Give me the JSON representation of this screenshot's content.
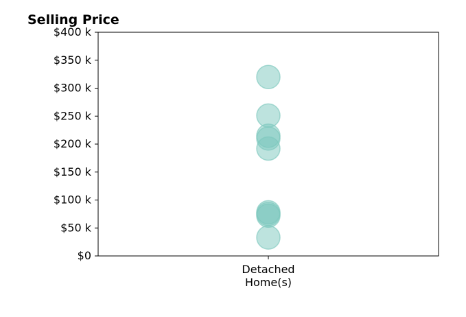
{
  "chart_data": {
    "type": "scatter",
    "title": "Selling Price",
    "xlabel": "",
    "ylabel": "",
    "categories": [
      "Detached\nHome(s)"
    ],
    "points": [
      {
        "category": "Detached\nHome(s)",
        "y": 320000
      },
      {
        "category": "Detached\nHome(s)",
        "y": 251000
      },
      {
        "category": "Detached\nHome(s)",
        "y": 215000
      },
      {
        "category": "Detached\nHome(s)",
        "y": 210000
      },
      {
        "category": "Detached\nHome(s)",
        "y": 192000
      },
      {
        "category": "Detached\nHome(s)",
        "y": 78000
      },
      {
        "category": "Detached\nHome(s)",
        "y": 75000
      },
      {
        "category": "Detached\nHome(s)",
        "y": 72000
      },
      {
        "category": "Detached\nHome(s)",
        "y": 33000
      }
    ],
    "ylim": [
      0,
      400000
    ],
    "ytick_values": [
      0,
      50000,
      100000,
      150000,
      200000,
      250000,
      300000,
      350000,
      400000
    ],
    "ytick_labels": [
      "$0",
      "$50 k",
      "$100 k",
      "$150 k",
      "$200 k",
      "$250 k",
      "$300 k",
      "$350 k",
      "$400 k"
    ],
    "xtick_labels": [
      "Detached",
      "Home(s)"
    ],
    "grid": false,
    "colors": {
      "point": "#7cc7bd",
      "axis": "#000000",
      "background": "#ffffff"
    }
  }
}
